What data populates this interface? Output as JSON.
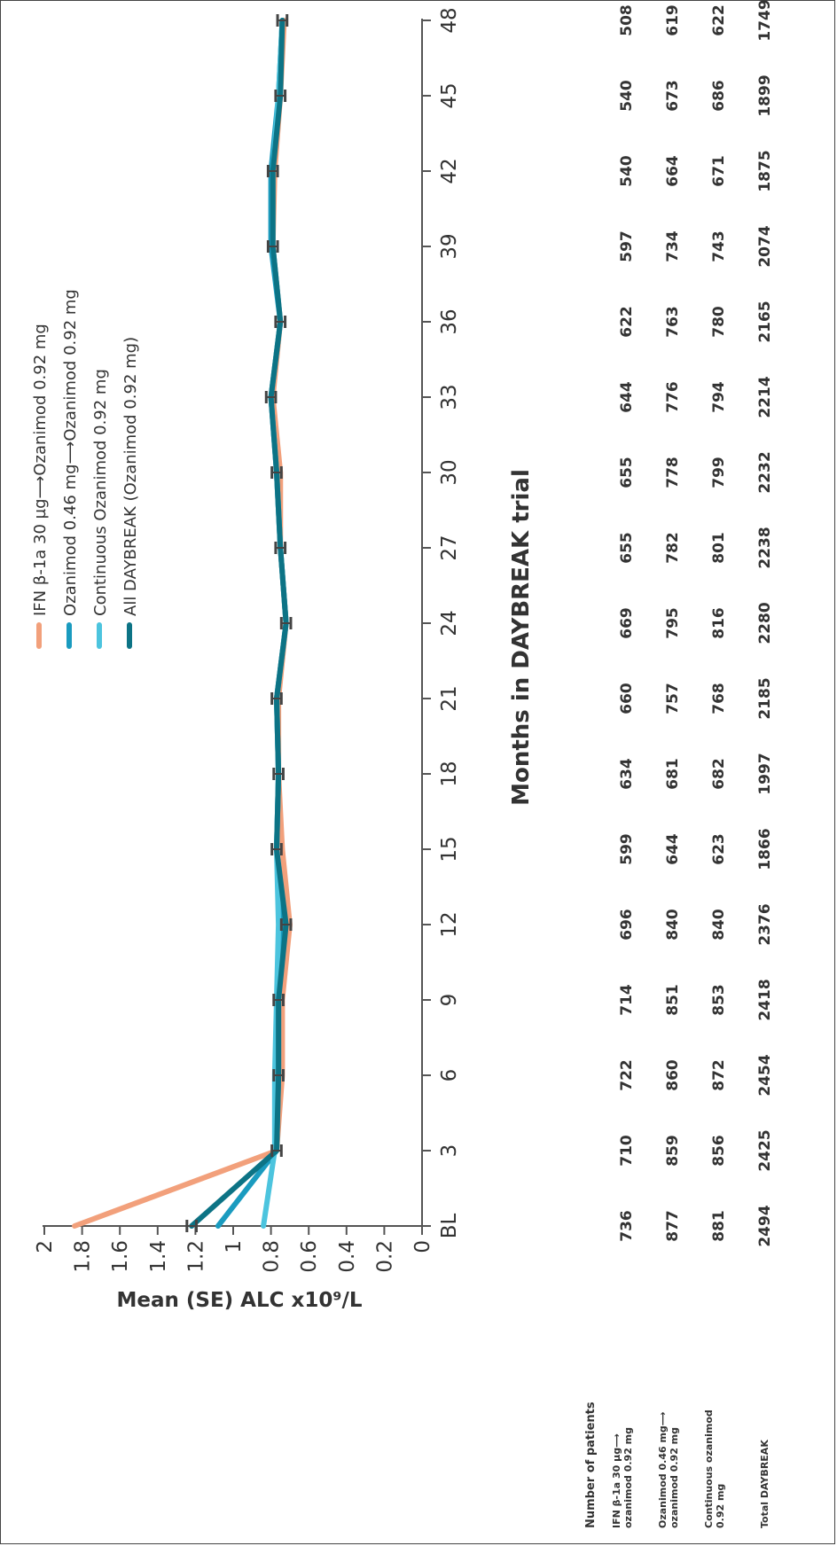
{
  "chart_data": {
    "type": "line",
    "xlabel": "Months in DAYBREAK trial",
    "ylabel": "Mean (SE) ALC x10⁹/L",
    "categories": [
      "BL",
      "3",
      "6",
      "9",
      "12",
      "15",
      "18",
      "21",
      "24",
      "27",
      "30",
      "33",
      "36",
      "39",
      "42",
      "45",
      "48"
    ],
    "ylim": [
      0,
      2
    ],
    "yticks": [
      "0",
      "0.2",
      "0.4",
      "0.6",
      "0.8",
      "1",
      "1.2",
      "1.4",
      "1.6",
      "1.8",
      "2"
    ],
    "legend_position": "top",
    "error_bars": true,
    "series": [
      {
        "name": "IFN β-1a 30 µg⟶Ozanimod 0.92 mg",
        "color": "#f2a07b",
        "values": [
          1.84,
          0.77,
          0.74,
          0.74,
          0.7,
          0.74,
          0.76,
          0.76,
          0.72,
          0.75,
          0.75,
          0.79,
          0.75,
          0.79,
          0.78,
          0.75,
          0.73
        ]
      },
      {
        "name": "Ozanimod 0.46 mg⟶Ozanimod 0.92 mg",
        "color": "#1a9bbf",
        "values": [
          1.08,
          0.77,
          0.76,
          0.76,
          0.74,
          0.77,
          0.76,
          0.77,
          0.72,
          0.75,
          0.77,
          0.8,
          0.75,
          0.8,
          0.8,
          0.76,
          0.74
        ]
      },
      {
        "name": "Continuous Ozanimod 0.92 mg",
        "color": "#4cc4de",
        "values": [
          0.84,
          0.78,
          0.78,
          0.77,
          0.76,
          0.77,
          0.76,
          0.77,
          0.72,
          0.75,
          0.77,
          0.8,
          0.75,
          0.79,
          0.79,
          0.76,
          0.74
        ]
      },
      {
        "name": "All DAYBREAK (Ozanimod 0.92 mg)",
        "color": "#0c7385",
        "values": [
          1.22,
          0.77,
          0.76,
          0.76,
          0.72,
          0.77,
          0.76,
          0.77,
          0.72,
          0.75,
          0.77,
          0.8,
          0.75,
          0.79,
          0.79,
          0.75,
          0.74
        ]
      }
    ],
    "error_bar_values": [
      1.22,
      0.77,
      0.76,
      0.76,
      0.72,
      0.77,
      0.76,
      0.77,
      0.72,
      0.75,
      0.77,
      0.8,
      0.75,
      0.79,
      0.79,
      0.75,
      0.74
    ],
    "error_bar_se": 0.025
  },
  "patients_table": {
    "title": "Number of patients",
    "rows": [
      {
        "label_lines": [
          "IFN β-1a 30 µg⟶",
          "ozanimod 0.92 mg"
        ],
        "values": [
          "736",
          "710",
          "722",
          "714",
          "696",
          "599",
          "634",
          "660",
          "669",
          "655",
          "655",
          "644",
          "622",
          "597",
          "540",
          "540",
          "508"
        ]
      },
      {
        "label_lines": [
          "Ozanimod 0.46 mg⟶",
          "ozanimod 0.92 mg"
        ],
        "values": [
          "877",
          "859",
          "860",
          "851",
          "840",
          "644",
          "681",
          "757",
          "795",
          "782",
          "778",
          "776",
          "763",
          "734",
          "664",
          "673",
          "619"
        ]
      },
      {
        "label_lines": [
          "Continuous ozanimod",
          "0.92 mg"
        ],
        "values": [
          "881",
          "856",
          "872",
          "853",
          "840",
          "623",
          "682",
          "768",
          "816",
          "801",
          "799",
          "794",
          "780",
          "743",
          "671",
          "686",
          "622"
        ]
      },
      {
        "label_lines": [
          "Total DAYBREAK"
        ],
        "values": [
          "2494",
          "2425",
          "2454",
          "2418",
          "2376",
          "1866",
          "1997",
          "2185",
          "2280",
          "2238",
          "2232",
          "2214",
          "2165",
          "2074",
          "1875",
          "1899",
          "1749"
        ]
      }
    ]
  }
}
